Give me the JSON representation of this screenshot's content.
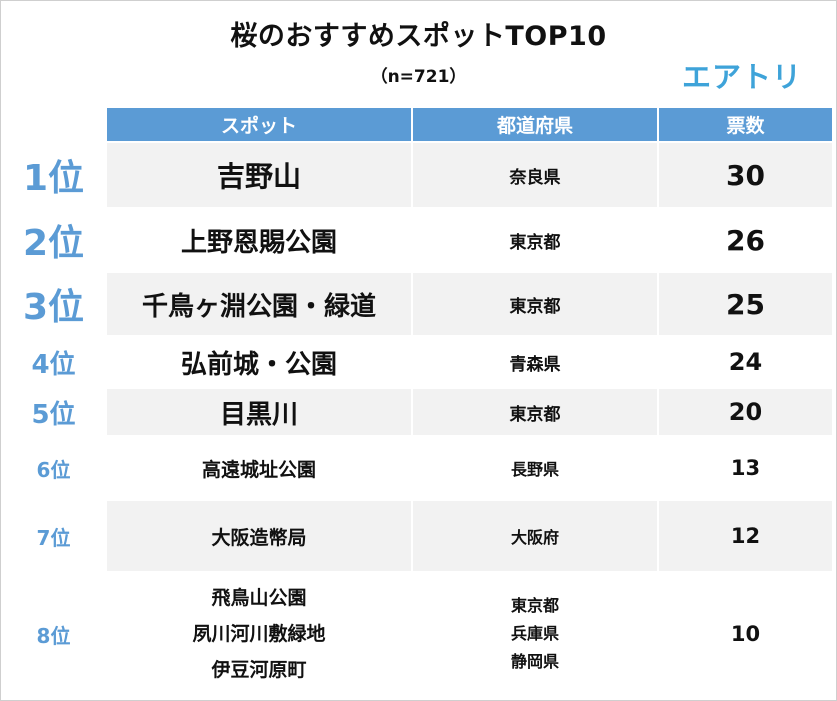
{
  "title": "桜のおすすめスポットTOP10",
  "subtitle": "（n=721）",
  "brand": "エアトリ",
  "headers": {
    "spot": "スポット",
    "prefecture": "都道府県",
    "votes": "票数"
  },
  "rows": [
    {
      "rank": "1位",
      "spot": "吉野山",
      "prefecture": "奈良県",
      "votes": "30"
    },
    {
      "rank": "2位",
      "spot": "上野恩賜公園",
      "prefecture": "東京都",
      "votes": "26"
    },
    {
      "rank": "3位",
      "spot": "千鳥ヶ淵公園・緑道",
      "prefecture": "東京都",
      "votes": "25"
    },
    {
      "rank": "4位",
      "spot": "弘前城・公園",
      "prefecture": "青森県",
      "votes": "24"
    },
    {
      "rank": "5位",
      "spot": "目黒川",
      "prefecture": "東京都",
      "votes": "20"
    },
    {
      "rank": "6位",
      "spot": "高遠城址公園",
      "prefecture": "長野県",
      "votes": "13"
    },
    {
      "rank": "7位",
      "spot": "大阪造幣局",
      "prefecture": "大阪府",
      "votes": "12"
    },
    {
      "rank": "8位",
      "spots": [
        "飛鳥山公園",
        "夙川河川敷緑地",
        "伊豆河原町"
      ],
      "prefectures": [
        "東京都",
        "兵庫県",
        "静岡県"
      ],
      "votes": "10"
    }
  ]
}
